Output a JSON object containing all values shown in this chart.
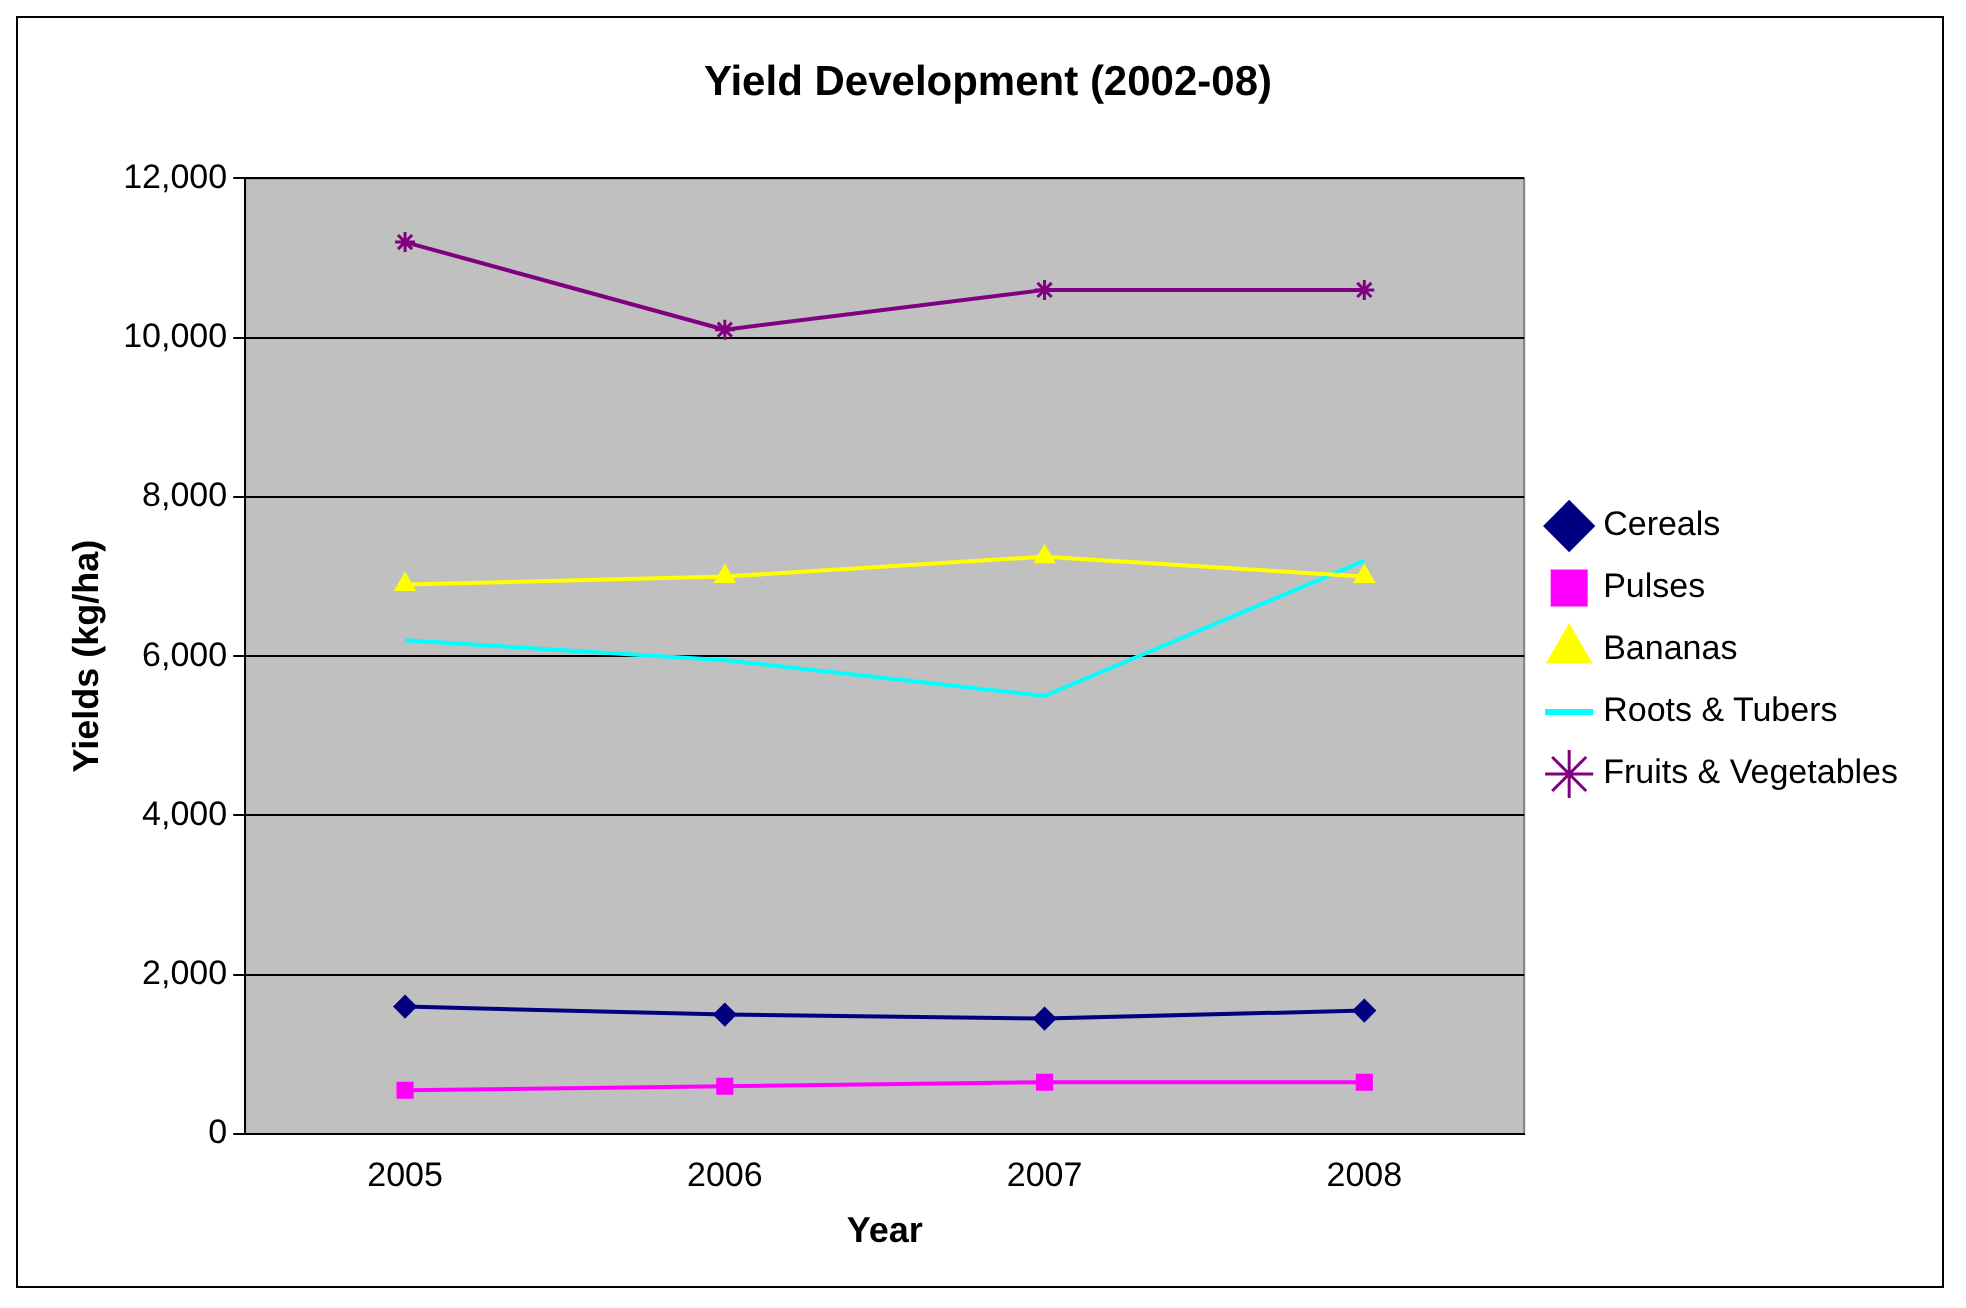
{
  "chart_data": {
    "type": "line",
    "title": "Yield Development (2002-08)",
    "xlabel": "Year",
    "ylabel": "Yields (kg/ha)",
    "categories": [
      "2005",
      "2006",
      "2007",
      "2008"
    ],
    "series": [
      {
        "name": "Cereals",
        "color": "#000080",
        "marker": "diamond",
        "values": [
          1600,
          1500,
          1450,
          1550
        ]
      },
      {
        "name": "Pulses",
        "color": "#ff00ff",
        "marker": "square",
        "values": [
          550,
          600,
          650,
          650
        ]
      },
      {
        "name": "Bananas",
        "color": "#ffff00",
        "marker": "triangle",
        "values": [
          6900,
          7000,
          7250,
          7000
        ]
      },
      {
        "name": "Roots & Tubers",
        "color": "#00ffff",
        "marker": "none",
        "values": [
          6200,
          5950,
          5500,
          7200
        ]
      },
      {
        "name": "Fruits & Vegetables",
        "color": "#800080",
        "marker": "cross",
        "values": [
          11200,
          10100,
          10600,
          10600
        ]
      }
    ],
    "ylim": [
      0,
      12000
    ],
    "yticks": [
      0,
      {
        "value": 2000,
        "label": "2,000"
      },
      {
        "value": 4000,
        "label": "4,000"
      },
      {
        "value": 6000,
        "label": "6,000"
      },
      {
        "value": 8000,
        "label": "8,000"
      },
      {
        "value": 10000,
        "label": "10,000"
      },
      {
        "value": 12000,
        "label": "12,000"
      }
    ],
    "grid": "y",
    "legend": "right",
    "line_style": "solid"
  }
}
